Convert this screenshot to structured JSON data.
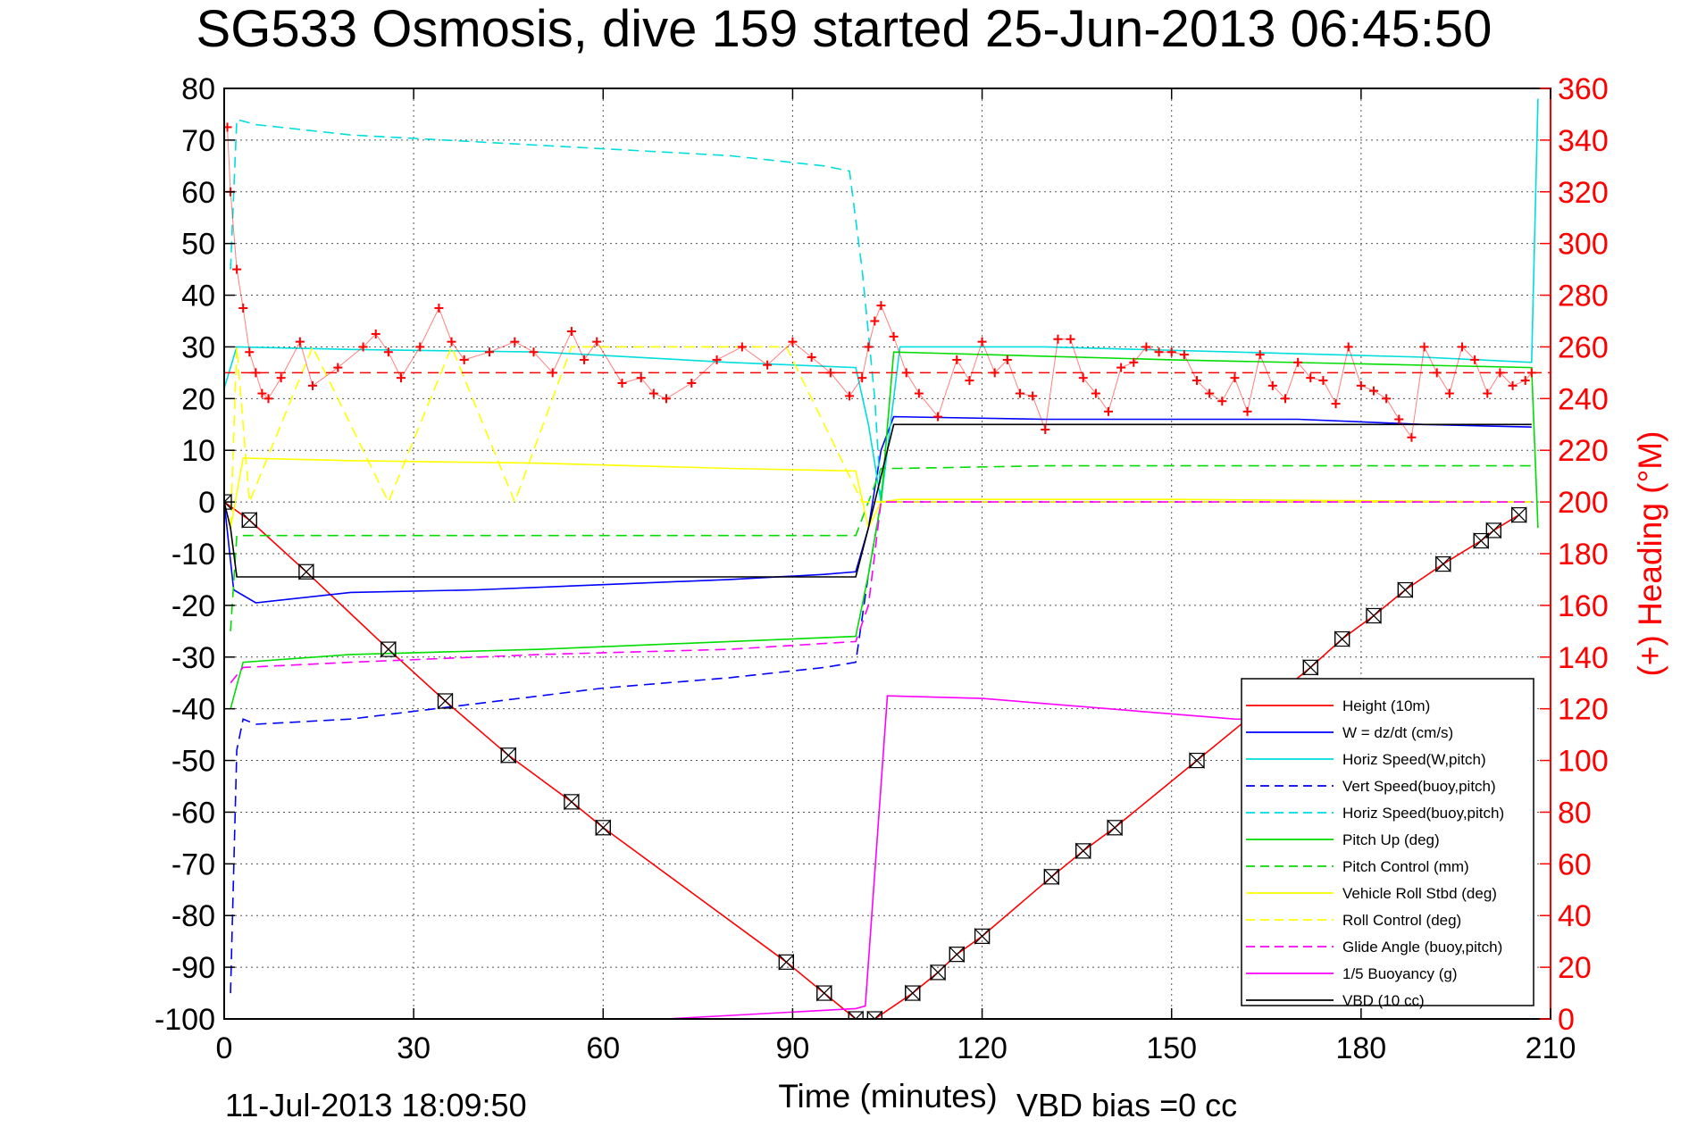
{
  "chart_data": {
    "type": "line",
    "title": "SG533 Osmosis, dive 159 started 25-Jun-2013 06:45:50",
    "xlabel": "Time (minutes)",
    "ylabel_right": "(+) Heading (°M)",
    "timestamp": "11-Jul-2013 18:09:50",
    "vbd_bias": "VBD bias =0 cc",
    "xlim": [
      0,
      210
    ],
    "ylim": [
      -100,
      80
    ],
    "ylim_right": [
      0,
      360
    ],
    "x_ticks": [
      "0",
      "30",
      "60",
      "90",
      "120",
      "150",
      "180",
      "210"
    ],
    "y_ticks": [
      "80",
      "70",
      "60",
      "50",
      "40",
      "30",
      "20",
      "10",
      "0",
      "-10",
      "-20",
      "-30",
      "-40",
      "-50",
      "-60",
      "-70",
      "-80",
      "-90",
      "-100"
    ],
    "y_right_ticks": [
      "360",
      "340",
      "320",
      "300",
      "280",
      "260",
      "240",
      "220",
      "200",
      "180",
      "160",
      "140",
      "120",
      "100",
      "80",
      "60",
      "40",
      "20",
      "0"
    ],
    "grid": true,
    "legend_position": "bottom-right",
    "colors": {
      "left_axis": "#000000",
      "right_axis": "#ff0000"
    },
    "series": [
      {
        "name": "Height (10m)",
        "color": "#ff0000",
        "style": "solid",
        "x": [
          0,
          4,
          13,
          26,
          35,
          45,
          55,
          60,
          89,
          95,
          100,
          103,
          109,
          113,
          116,
          120,
          131,
          136,
          141,
          154,
          172,
          177,
          182,
          187,
          193,
          199,
          201,
          205
        ],
        "y": [
          0,
          -3.5,
          -13.5,
          -28.5,
          -38.5,
          -49,
          -58,
          -63,
          -89,
          -95,
          -100,
          -100,
          -95,
          -91,
          -87.5,
          -84,
          -72.5,
          -67.5,
          -63,
          -50,
          -32,
          -26.5,
          -22,
          -17,
          -12,
          -7.5,
          -5.5,
          -2.5
        ]
      },
      {
        "name": "W = dz/dt (cm/s)",
        "color": "#0000ff",
        "style": "solid",
        "x": [
          0,
          1.5,
          5,
          20,
          40,
          60,
          80,
          95,
          100,
          102,
          104,
          106,
          130,
          170,
          190,
          207
        ],
        "y": [
          0,
          -17,
          -19.5,
          -17.5,
          -17,
          -16,
          -15,
          -14,
          -13.5,
          -5,
          10,
          16.5,
          16,
          16,
          15,
          14.5
        ]
      },
      {
        "name": "Horiz Speed(W,pitch)",
        "color": "#00dddd",
        "style": "solid",
        "x": [
          0,
          2,
          20,
          50,
          80,
          100,
          102,
          104,
          107,
          130,
          160,
          190,
          207,
          208
        ],
        "y": [
          22,
          30,
          29.5,
          29,
          27,
          26,
          15,
          0,
          30,
          30,
          29,
          28,
          27,
          78
        ]
      },
      {
        "name": "Vert Speed(buoy,pitch)",
        "color": "#0000ff",
        "style": "dashed",
        "x": [
          1,
          2,
          3,
          5,
          20,
          40,
          60,
          80,
          95,
          100,
          102,
          104,
          207
        ],
        "y": [
          -95,
          -48,
          -42,
          -43,
          -42,
          -39,
          -36,
          -34,
          -32,
          -31,
          -14,
          0,
          0
        ]
      },
      {
        "name": "Horiz Speed(buoy,pitch)",
        "color": "#00dddd",
        "style": "dashed",
        "x": [
          1,
          2,
          5,
          20,
          50,
          80,
          95,
          99,
          101,
          103,
          104
        ],
        "y": [
          45,
          74,
          73,
          71,
          69,
          67,
          65,
          64,
          45,
          20,
          0
        ]
      },
      {
        "name": "Pitch Up (deg)",
        "color": "#00dd00",
        "style": "solid",
        "x": [
          1,
          3,
          20,
          50,
          80,
          100,
          102,
          104,
          106,
          150,
          207,
          208
        ],
        "y": [
          -40,
          -31,
          -29.5,
          -28.5,
          -27,
          -26,
          -14,
          0,
          29,
          27.5,
          26,
          -5
        ]
      },
      {
        "name": "Pitch Control (mm)",
        "color": "#00dd00",
        "style": "dashed",
        "x": [
          1,
          2,
          60,
          100,
          102,
          104,
          107,
          130,
          207
        ],
        "y": [
          -25,
          -6.5,
          -6.5,
          -6.5,
          0,
          6.5,
          6.5,
          7,
          7
        ]
      },
      {
        "name": "Vehicle Roll Stbd (deg)",
        "color": "#ffff00",
        "style": "solid",
        "x": [
          1,
          3,
          20,
          50,
          80,
          100,
          102,
          104,
          107,
          150,
          207
        ],
        "y": [
          -5,
          8.5,
          8,
          7.5,
          6.5,
          6,
          -5,
          0,
          0.5,
          0.5,
          0
        ]
      },
      {
        "name": "Roll Control (deg)",
        "color": "#ffff00",
        "style": "dashed",
        "x": [
          1,
          2,
          4,
          14,
          26,
          36,
          46,
          55,
          89,
          101,
          103,
          207
        ],
        "y": [
          -5,
          30,
          0,
          30,
          0,
          30,
          0,
          30,
          30,
          0,
          0,
          0
        ]
      },
      {
        "name": "Glide Angle (buoy,pitch)",
        "color": "#ff00ff",
        "style": "dashed",
        "x": [
          1,
          3,
          20,
          50,
          80,
          100,
          102,
          104,
          207
        ],
        "y": [
          -35,
          -32,
          -31,
          -29.5,
          -28.5,
          -27,
          -20,
          0,
          0
        ]
      },
      {
        "name": "1/5 Buoyancy (g)",
        "color": "#ff00ff",
        "style": "solid",
        "x": [
          70,
          100,
          101.5,
          105,
          120,
          160,
          175
        ],
        "y": [
          -100,
          -98,
          -97.5,
          -37.5,
          -38,
          -42,
          -42.5
        ]
      },
      {
        "name": "VBD (10 cc)",
        "color": "#000000",
        "style": "solid",
        "x": [
          0,
          1,
          2,
          60,
          100,
          102,
          104,
          106,
          140,
          207
        ],
        "y": [
          0,
          -5,
          -14.5,
          -14.5,
          -14.5,
          -5,
          5,
          15,
          15,
          15
        ]
      }
    ],
    "heading_series": {
      "name": "(+) Heading",
      "color": "#ff0000",
      "marker": "+",
      "x": [
        0.5,
        1,
        2,
        3,
        4,
        5,
        6,
        7,
        9,
        12,
        14,
        18,
        22,
        24,
        26,
        28,
        31,
        34,
        36,
        38,
        42,
        46,
        49,
        52,
        55,
        57,
        59,
        63,
        66,
        68,
        70,
        74,
        78,
        82,
        86,
        90,
        93,
        96,
        99,
        101,
        102,
        103,
        104,
        106,
        108,
        110,
        113,
        116,
        118,
        120,
        122,
        124,
        126,
        128,
        130,
        132,
        134,
        136,
        138,
        140,
        142,
        144,
        146,
        148,
        150,
        152,
        154,
        156,
        158,
        160,
        162,
        164,
        166,
        168,
        170,
        172,
        174,
        176,
        178,
        180,
        182,
        184,
        186,
        188,
        190,
        192,
        194,
        196,
        198,
        200,
        202,
        204,
        206,
        207
      ],
      "y": [
        345,
        320,
        290,
        275,
        258,
        250,
        242,
        240,
        248,
        262,
        245,
        252,
        260,
        265,
        258,
        248,
        260,
        275,
        262,
        255,
        258,
        262,
        258,
        250,
        266,
        255,
        262,
        246,
        248,
        242,
        240,
        246,
        255,
        260,
        253,
        262,
        256,
        250,
        241,
        248,
        260,
        270,
        276,
        264,
        250,
        242,
        233,
        255,
        247,
        262,
        250,
        255,
        242,
        241,
        228,
        263,
        263,
        248,
        242,
        235,
        252,
        254,
        260,
        258,
        258,
        257,
        247,
        242,
        239,
        248,
        235,
        257,
        245,
        240,
        254,
        248,
        247,
        238,
        260,
        245,
        243,
        240,
        232,
        225,
        260,
        250,
        242,
        260,
        255,
        242,
        250,
        245,
        247,
        250
      ]
    },
    "heading_reference": {
      "value": 250,
      "color": "#ff0000",
      "style": "dashed"
    },
    "markers": {
      "name": "Height markers",
      "x": [
        0,
        4,
        13,
        26,
        35,
        45,
        55,
        60,
        89,
        95,
        100,
        103,
        109,
        113,
        116,
        120,
        131,
        136,
        141,
        154,
        172,
        177,
        182,
        187,
        193,
        199,
        201,
        205
      ],
      "y": [
        0,
        -3.5,
        -13.5,
        -28.5,
        -38.5,
        -49,
        -58,
        -63,
        -89,
        -95,
        -100,
        -100,
        -95,
        -91,
        -87.5,
        -84,
        -72.5,
        -67.5,
        -63,
        -50,
        -32,
        -26.5,
        -22,
        -17,
        -12,
        -7.5,
        -5.5,
        -2.5
      ]
    }
  }
}
